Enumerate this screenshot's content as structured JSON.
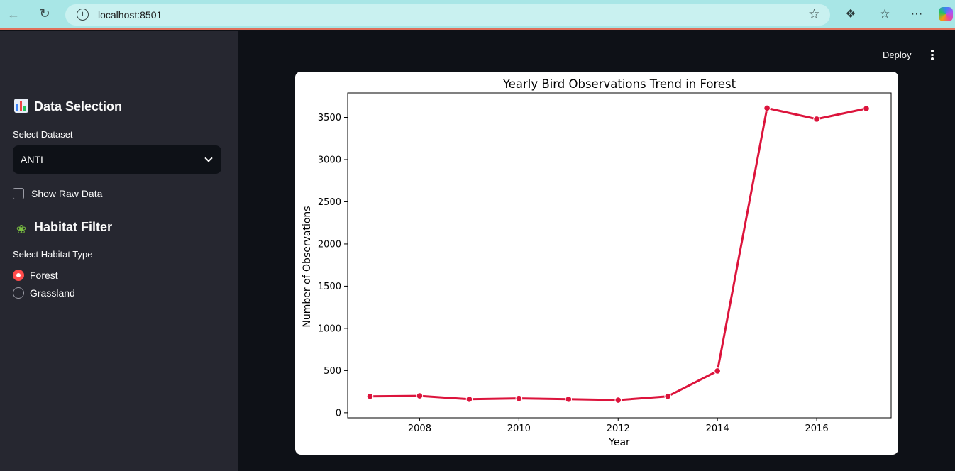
{
  "browser": {
    "url": "localhost:8501"
  },
  "sidebar": {
    "data_section": {
      "heading": "Data Selection",
      "dataset_label": "Select Dataset",
      "dataset_value": "ANTI",
      "raw_data_label": "Show Raw Data",
      "raw_data_checked": false
    },
    "habitat_section": {
      "heading": "Habitat Filter",
      "habitat_label": "Select Habitat Type",
      "options": [
        {
          "label": "Forest",
          "selected": true
        },
        {
          "label": "Grassland",
          "selected": false
        }
      ]
    }
  },
  "header": {
    "deploy_label": "Deploy"
  },
  "chart_data": {
    "type": "line",
    "title": "Yearly Bird Observations Trend in Forest",
    "xlabel": "Year",
    "ylabel": "Number of Observations",
    "x": [
      2007,
      2008,
      2009,
      2010,
      2011,
      2012,
      2013,
      2014,
      2015,
      2016,
      2017
    ],
    "y": [
      195,
      200,
      160,
      170,
      160,
      150,
      195,
      495,
      3610,
      3480,
      3605
    ],
    "xticks": [
      2008,
      2010,
      2012,
      2014,
      2016
    ],
    "yticks": [
      0,
      500,
      1000,
      1500,
      2000,
      2500,
      3000,
      3500
    ],
    "xlim": [
      2006.55,
      2017.5
    ],
    "ylim": [
      -60,
      3790
    ],
    "color": "#dc143c",
    "grid": false,
    "markers": true
  }
}
